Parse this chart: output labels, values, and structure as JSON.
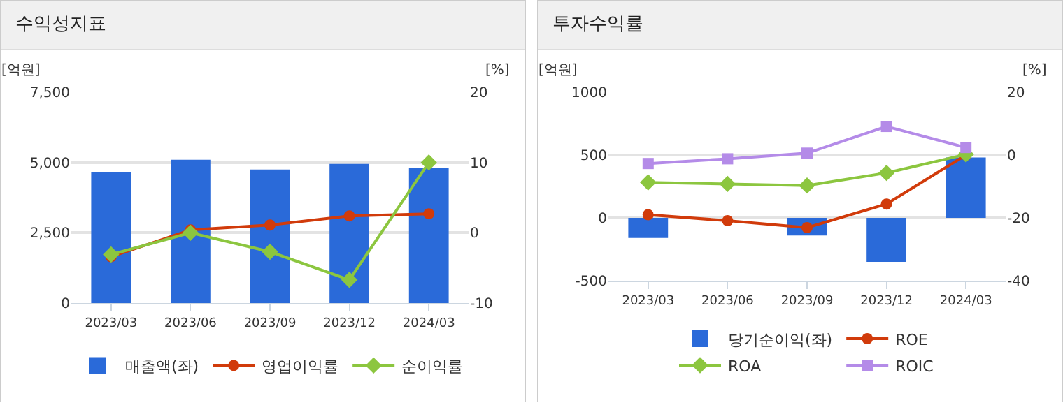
{
  "chart_data": [
    {
      "type": "bar",
      "title": "수익성지표",
      "ylabel": "[억원]",
      "y2label": "[%]",
      "categories": [
        "2023/03",
        "2023/06",
        "2023/09",
        "2023/12",
        "2024/03"
      ],
      "series": [
        {
          "name": "매출액(좌)",
          "color": "#2a6ad9",
          "values": [
            4650,
            5100,
            4750,
            4950,
            4800
          ]
        },
        {
          "name": "영업이익률",
          "type": "line",
          "axis": "y2",
          "marker": "circle",
          "color": "#d13b0b",
          "values": [
            -3.4,
            0.4,
            1.1,
            2.4,
            2.7
          ]
        },
        {
          "name": "순이익률",
          "type": "line",
          "axis": "y2",
          "marker": "diamond",
          "color": "#8cc63f",
          "values": [
            -3.1,
            0,
            -2.7,
            -6.7,
            10
          ]
        }
      ],
      "ylim": [
        0,
        7500
      ],
      "yticks": [
        0,
        {
          "value": 2500,
          "label": "2,500"
        },
        {
          "value": 5000,
          "label": "5,000"
        },
        {
          "value": 7500,
          "label": "7,500"
        }
      ],
      "y2lim": [
        -10,
        20
      ],
      "y2ticks": [
        -10,
        0,
        10,
        20
      ],
      "grid": "y",
      "legend": "bottom"
    },
    {
      "type": "bar",
      "title": "투자수익률",
      "ylabel": "[억원]",
      "y2label": "[%]",
      "categories": [
        "2023/03",
        "2023/06",
        "2023/09",
        "2023/12",
        "2024/03"
      ],
      "series": [
        {
          "name": "당기순이익(좌)",
          "color": "#2a6ad9",
          "values": [
            -160,
            0,
            -140,
            -350,
            480
          ]
        },
        {
          "name": "ROE",
          "type": "line",
          "axis": "y2",
          "marker": "circle",
          "color": "#d13b0b",
          "values": [
            -19,
            -20.9,
            -23.1,
            -15.6,
            0
          ]
        },
        {
          "name": "ROA",
          "type": "line",
          "axis": "y2",
          "marker": "diamond",
          "color": "#8cc63f",
          "values": [
            -8.7,
            -9.2,
            -9.7,
            -5.7,
            0.2
          ]
        },
        {
          "name": "ROIC",
          "type": "line",
          "axis": "y2",
          "marker": "square",
          "color": "#b48be8",
          "values": [
            -2.7,
            -1.2,
            0.6,
            9.1,
            2.4
          ]
        }
      ],
      "ylim": [
        -500,
        1000
      ],
      "yticks": [
        -500,
        0,
        500,
        1000
      ],
      "y2lim": [
        -40,
        20
      ],
      "y2ticks": [
        -40,
        -20,
        0,
        20
      ],
      "grid": "y",
      "legend": "bottom"
    }
  ]
}
